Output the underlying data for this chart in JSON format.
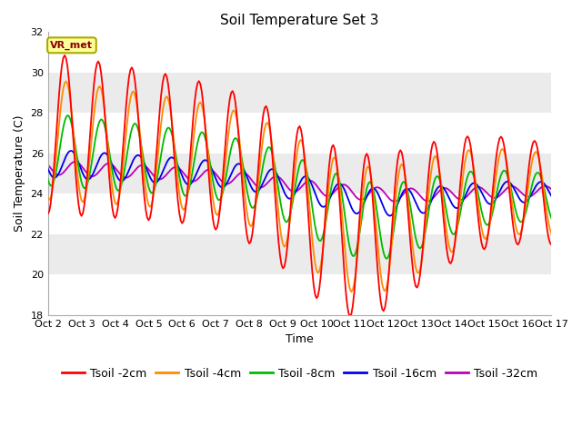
{
  "title": "Soil Temperature Set 3",
  "xlabel": "Time",
  "ylabel": "Soil Temperature (C)",
  "ylim": [
    18,
    32
  ],
  "xlim": [
    0,
    15
  ],
  "x_tick_labels": [
    "Oct 2",
    "Oct 3",
    "Oct 4",
    "Oct 5",
    "Oct 6",
    "Oct 7",
    "Oct 8",
    "Oct 9",
    "Oct 10",
    "Oct 11",
    "Oct 12",
    "Oct 13",
    "Oct 14",
    "Oct 15",
    "Oct 16",
    "Oct 17"
  ],
  "annotation_text": "VR_met",
  "annotation_box_color": "#FFFF99",
  "annotation_border_color": "#AAAA00",
  "annotation_text_color": "#880000",
  "line_colors": {
    "tsoil_2cm": "#FF0000",
    "tsoil_4cm": "#FF8C00",
    "tsoil_8cm": "#00BB00",
    "tsoil_16cm": "#0000EE",
    "tsoil_32cm": "#BB00BB"
  },
  "legend_labels": [
    "Tsoil -2cm",
    "Tsoil -4cm",
    "Tsoil -8cm",
    "Tsoil -16cm",
    "Tsoil -32cm"
  ],
  "plot_bg_color": "#EBEBEB",
  "band_color_light": "#EBEBEB",
  "band_color_dark": "#DCDCDC",
  "grid_color": "#FFFFFF",
  "title_fontsize": 11,
  "label_fontsize": 9,
  "tick_fontsize": 8,
  "legend_fontsize": 9
}
